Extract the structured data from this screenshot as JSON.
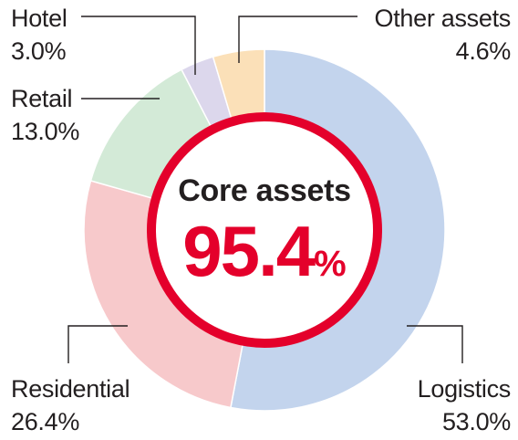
{
  "chart_data": {
    "type": "pie",
    "categories": [
      "Logistics",
      "Residential",
      "Retail",
      "Hotel",
      "Other assets"
    ],
    "values": [
      53.0,
      26.4,
      13.0,
      3.0,
      4.6
    ],
    "value_labels": [
      "53.0%",
      "26.4%",
      "13.0%",
      "3.0%",
      "4.6%"
    ],
    "colors": [
      "#c3d4ed",
      "#f7c9cb",
      "#d3ead7",
      "#dcd7ec",
      "#fbe0b8"
    ],
    "center": {
      "title": "Core assets",
      "value": "95.4",
      "unit": "%"
    },
    "ring_color": "#e4002b"
  }
}
